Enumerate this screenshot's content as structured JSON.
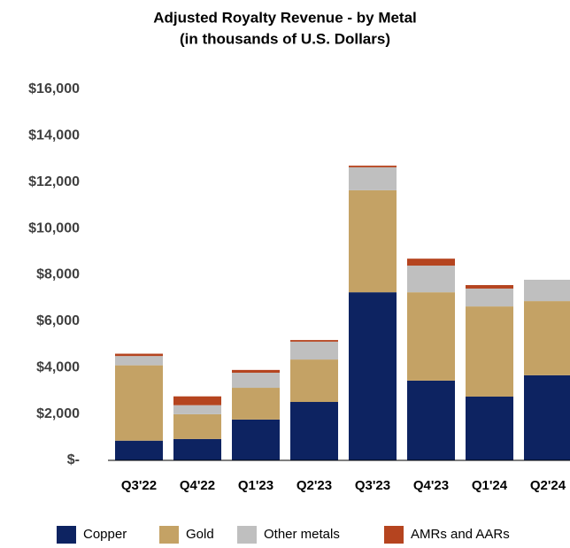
{
  "chart_data": {
    "type": "stacked_bar",
    "title": "Adjusted Royalty Revenue - by Metal",
    "subtitle": "(in thousands of U.S. Dollars)",
    "categories": [
      "Q3'22",
      "Q4'22",
      "Q1'23",
      "Q2'23",
      "Q3'23",
      "Q4'23",
      "Q1'24",
      "Q2'24"
    ],
    "series": [
      {
        "name": "Copper",
        "color": "#0d2361",
        "values": [
          850,
          920,
          1760,
          2520,
          7250,
          3440,
          2750,
          3670
        ]
      },
      {
        "name": "Gold",
        "color": "#c4a265",
        "values": [
          3250,
          1070,
          1370,
          1830,
          4400,
          3810,
          3890,
          3200
        ]
      },
      {
        "name": "Other metals",
        "color": "#bfbfbf",
        "values": [
          400,
          390,
          650,
          770,
          990,
          1150,
          770,
          920
        ]
      },
      {
        "name": "AMRs and AARs",
        "color": "#b5441f",
        "values": [
          100,
          380,
          120,
          70,
          70,
          300,
          150,
          0
        ]
      }
    ],
    "ylim": [
      0,
      16000
    ],
    "yticks": [
      {
        "value": 0,
        "label": "$-"
      },
      {
        "value": 2000,
        "label": "$2,000"
      },
      {
        "value": 4000,
        "label": "$4,000"
      },
      {
        "value": 6000,
        "label": "$6,000"
      },
      {
        "value": 8000,
        "label": "$8,000"
      },
      {
        "value": 10000,
        "label": "$10,000"
      },
      {
        "value": 12000,
        "label": "$12,000"
      },
      {
        "value": 14000,
        "label": "$14,000"
      },
      {
        "value": 16000,
        "label": "$16,000"
      }
    ],
    "grid": false,
    "legend": "bottom"
  }
}
